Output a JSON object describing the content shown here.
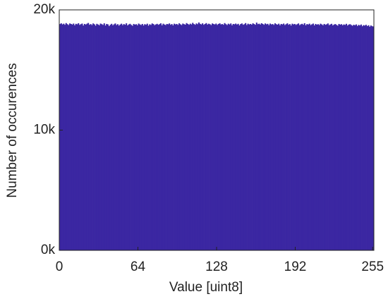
{
  "chart_data": {
    "type": "histogram",
    "xlabel": "Value [uint8]",
    "ylabel": "Number of occurences",
    "color": "#3b27a2",
    "bins": [
      0,
      1,
      2,
      3,
      4,
      5,
      6,
      7,
      8,
      9,
      10,
      11,
      12,
      13,
      14,
      15,
      16,
      17,
      18,
      19,
      20,
      21,
      22,
      23,
      24,
      25,
      26,
      27,
      28,
      29,
      30,
      31,
      32,
      33,
      34,
      35,
      36,
      37,
      38,
      39,
      40,
      41,
      42,
      43,
      44,
      45,
      46,
      47,
      48,
      49,
      50,
      51,
      52,
      53,
      54,
      55,
      56,
      57,
      58,
      59,
      60,
      61,
      62,
      63,
      64,
      65,
      66,
      67,
      68,
      69,
      70,
      71,
      72,
      73,
      74,
      75,
      76,
      77,
      78,
      79,
      80,
      81,
      82,
      83,
      84,
      85,
      86,
      87,
      88,
      89,
      90,
      91,
      92,
      93,
      94,
      95,
      96,
      97,
      98,
      99,
      100,
      101,
      102,
      103,
      104,
      105,
      106,
      107,
      108,
      109,
      110,
      111,
      112,
      113,
      114,
      115,
      116,
      117,
      118,
      119,
      120,
      121,
      122,
      123,
      124,
      125,
      126,
      127,
      128,
      129,
      130,
      131,
      132,
      133,
      134,
      135,
      136,
      137,
      138,
      139,
      140,
      141,
      142,
      143,
      144,
      145,
      146,
      147,
      148,
      149,
      150,
      151,
      152,
      153,
      154,
      155,
      156,
      157,
      158,
      159,
      160,
      161,
      162,
      163,
      164,
      165,
      166,
      167,
      168,
      169,
      170,
      171,
      172,
      173,
      174,
      175,
      176,
      177,
      178,
      179,
      180,
      181,
      182,
      183,
      184,
      185,
      186,
      187,
      188,
      189,
      190,
      191,
      192,
      193,
      194,
      195,
      196,
      197,
      198,
      199,
      200,
      201,
      202,
      203,
      204,
      205,
      206,
      207,
      208,
      209,
      210,
      211,
      212,
      213,
      214,
      215,
      216,
      217,
      218,
      219,
      220,
      221,
      222,
      223,
      224,
      225,
      226,
      227,
      228,
      229,
      230,
      231,
      232,
      233,
      234,
      235,
      236,
      237,
      238,
      239,
      240,
      241,
      242,
      243,
      244,
      245,
      246,
      247,
      248,
      249,
      250,
      251,
      252,
      253,
      254,
      255,
      256
    ],
    "counts": [
      18820,
      18880,
      18790,
      18850,
      18760,
      18900,
      18810,
      18740,
      18870,
      18830,
      18780,
      18860,
      18720,
      18840,
      18800,
      18890,
      18750,
      18810,
      18860,
      18700,
      18830,
      18780,
      18850,
      18910,
      18760,
      18820,
      18740,
      18870,
      18800,
      18690,
      18840,
      18780,
      18720,
      18860,
      18810,
      18750,
      18880,
      18700,
      18830,
      18790,
      18650,
      18760,
      18840,
      18720,
      18800,
      18870,
      18740,
      18810,
      18690,
      18780,
      18850,
      18730,
      18820,
      18760,
      18880,
      18710,
      18790,
      18840,
      18750,
      18680,
      18830,
      18770,
      18810,
      18720,
      18860,
      18790,
      18740,
      18830,
      18700,
      18810,
      18760,
      18850,
      18690,
      18800,
      18750,
      18870,
      18820,
      18730,
      18790,
      18840,
      18760,
      18810,
      18880,
      18720,
      18850,
      18780,
      18740,
      18830,
      18800,
      18870,
      18760,
      18820,
      18710,
      18850,
      18790,
      18830,
      18750,
      18880,
      18800,
      18740,
      18860,
      18810,
      18770,
      18900,
      18830,
      18760,
      18850,
      18790,
      18920,
      18820,
      18760,
      18870,
      18810,
      18950,
      18840,
      18790,
      18880,
      18760,
      18830,
      18900,
      18780,
      18850,
      18810,
      18740,
      18870,
      18820,
      18790,
      18860,
      18750,
      18830,
      18880,
      18790,
      18820,
      18760,
      18900,
      18810,
      18740,
      18850,
      18790,
      18870,
      18720,
      18830,
      18800,
      18860,
      18780,
      18840,
      18710,
      18820,
      18870,
      18760,
      18810,
      18900,
      18740,
      18850,
      18790,
      18830,
      18770,
      18880,
      18820,
      18760,
      18940,
      18810,
      18850,
      18780,
      18890,
      18830,
      18760,
      18870,
      18800,
      18840,
      18730,
      18860,
      18790,
      18820,
      18750,
      18880,
      18810,
      18770,
      18850,
      18720,
      18830,
      18790,
      18860,
      18740,
      18810,
      18880,
      18760,
      18820,
      18700,
      18850,
      18790,
      18830,
      18750,
      18810,
      18870,
      18730,
      18800,
      18840,
      18760,
      18890,
      18720,
      18820,
      18780,
      18850,
      18740,
      18800,
      18860,
      18710,
      18830,
      18770,
      18810,
      18740,
      18850,
      18790,
      18720,
      18830,
      18760,
      18800,
      18870,
      18730,
      18790,
      18840,
      18710,
      18780,
      18820,
      18750,
      18690,
      18830,
      18770,
      18810,
      18720,
      18790,
      18750,
      18840,
      18700,
      18780,
      18810,
      18740,
      18680,
      18760,
      18720,
      18790,
      18660,
      18750,
      18700,
      18780,
      18640,
      18730,
      18690,
      18760,
      18650,
      18720,
      18600,
      18700,
      18640,
      18620
    ],
    "xlim": [
      0,
      256
    ],
    "xticks": [
      0,
      64,
      128,
      192,
      255
    ],
    "ylim": [
      0,
      20000
    ],
    "yticks": [
      {
        "value": 0,
        "label": "0k"
      },
      {
        "value": 10000,
        "label": "10k"
      },
      {
        "value": 20000,
        "label": "20k"
      }
    ]
  }
}
